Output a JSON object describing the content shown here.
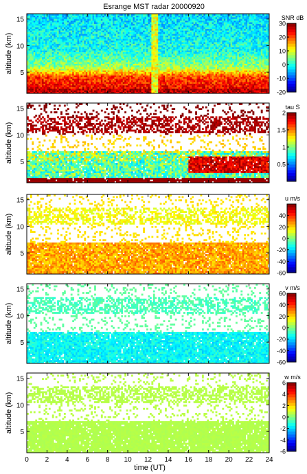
{
  "figure_title": "Esrange MST radar 20000920",
  "x_axis_label": "time (UT)",
  "chart_data": [
    {
      "type": "heatmap",
      "title": "Esrange MST radar 20000920",
      "xlabel": "",
      "ylabel": "altitude (km)",
      "colorbar_label": "SNR dB",
      "xlim": [
        0,
        24
      ],
      "ylim": [
        1,
        16
      ],
      "y_ticks": [
        5,
        10,
        15
      ],
      "clim": [
        -20,
        30
      ],
      "colorbar_ticks": [
        -20,
        -10,
        0,
        10,
        20,
        30
      ],
      "description_of_field": "high SNR (20-30 dB) below ~5 km, decreasing with altitude to ~0 dB above 10 km; vertical band near 12.5-13 UT"
    },
    {
      "type": "heatmap",
      "xlabel": "",
      "ylabel": "altitude (km)",
      "colorbar_label": "tau S",
      "xlim": [
        0,
        24
      ],
      "ylim": [
        1,
        16
      ],
      "y_ticks": [
        5,
        10,
        15
      ],
      "clim": [
        0,
        2
      ],
      "colorbar_ticks": [
        0.5,
        1,
        1.5,
        2
      ]
    },
    {
      "type": "heatmap",
      "xlabel": "",
      "ylabel": "altitude (km)",
      "colorbar_label": "u m/s",
      "xlim": [
        0,
        24
      ],
      "ylim": [
        1,
        16
      ],
      "y_ticks": [
        5,
        10,
        15
      ],
      "clim": [
        -60,
        60
      ],
      "colorbar_ticks": [
        -60,
        -40,
        -20,
        0,
        20,
        40
      ]
    },
    {
      "type": "heatmap",
      "xlabel": "",
      "ylabel": "altitude (km)",
      "colorbar_label": "v m/s",
      "xlim": [
        0,
        24
      ],
      "ylim": [
        1,
        16
      ],
      "y_ticks": [
        5,
        10,
        15
      ],
      "clim": [
        -60,
        60
      ],
      "colorbar_ticks": [
        -60,
        -40,
        -20,
        0,
        20,
        40,
        60
      ]
    },
    {
      "type": "heatmap",
      "xlabel": "time (UT)",
      "ylabel": "altitude (km)",
      "colorbar_label": "w m/s",
      "xlim": [
        0,
        24
      ],
      "ylim": [
        1,
        16
      ],
      "y_ticks": [
        5,
        10,
        15
      ],
      "x_ticks": [
        0,
        2,
        4,
        6,
        8,
        10,
        12,
        14,
        16,
        18,
        20,
        22,
        24
      ],
      "clim": [
        -6,
        6
      ],
      "colorbar_ticks": [
        -6,
        -4,
        -2,
        0,
        2,
        4,
        6
      ]
    }
  ]
}
